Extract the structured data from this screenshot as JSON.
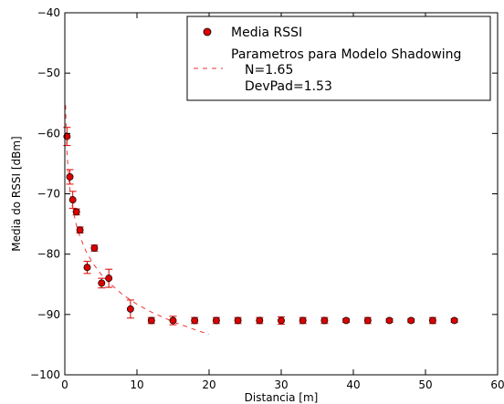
{
  "chart_data": {
    "type": "scatter",
    "xlabel": "Distancia [m]",
    "ylabel": "Media do RSSI [dBm]",
    "xlim": [
      0,
      60
    ],
    "ylim": [
      -100,
      -40
    ],
    "xticks": [
      "0",
      "10",
      "20",
      "30",
      "40",
      "50",
      "60"
    ],
    "yticks": [
      "−100",
      "−90",
      "−80",
      "−70",
      "−60",
      "−50",
      "−40"
    ],
    "grid": false,
    "legend_position": "top-right",
    "marker_color": "#dd0000",
    "model_color": "#ee3333",
    "series": [
      {
        "name": "Media RSSI",
        "kind": "points-with-errorbars",
        "points": [
          {
            "x": 0.3,
            "y": -60.5,
            "err": 1.5
          },
          {
            "x": 0.7,
            "y": -67.2,
            "err": 1.2
          },
          {
            "x": 1.1,
            "y": -71.0,
            "err": 1.4
          },
          {
            "x": 1.6,
            "y": -73.0,
            "err": 0.5
          },
          {
            "x": 2.1,
            "y": -76.0,
            "err": 0.5
          },
          {
            "x": 4.1,
            "y": -79.0,
            "err": 0.5
          },
          {
            "x": 3.1,
            "y": -82.2,
            "err": 1.0
          },
          {
            "x": 5.1,
            "y": -84.8,
            "err": 0.8
          },
          {
            "x": 6.1,
            "y": -84.0,
            "err": 1.5
          },
          {
            "x": 9.1,
            "y": -89.1,
            "err": 1.5
          },
          {
            "x": 12.0,
            "y": -91.0,
            "err": 0.5
          },
          {
            "x": 15.0,
            "y": -91.0,
            "err": 0.7
          },
          {
            "x": 18.0,
            "y": -91.0,
            "err": 0.5
          },
          {
            "x": 21.0,
            "y": -91.0,
            "err": 0.5
          },
          {
            "x": 24.0,
            "y": -91.0,
            "err": 0.5
          },
          {
            "x": 27.0,
            "y": -91.0,
            "err": 0.5
          },
          {
            "x": 30.0,
            "y": -91.0,
            "err": 0.6
          },
          {
            "x": 33.0,
            "y": -91.0,
            "err": 0.5
          },
          {
            "x": 36.0,
            "y": -91.0,
            "err": 0.5
          },
          {
            "x": 39.0,
            "y": -91.0,
            "err": 0.3
          },
          {
            "x": 42.0,
            "y": -91.0,
            "err": 0.5
          },
          {
            "x": 45.0,
            "y": -91.0,
            "err": 0.3
          },
          {
            "x": 48.0,
            "y": -91.0,
            "err": 0.3
          },
          {
            "x": 51.0,
            "y": -91.0,
            "err": 0.5
          },
          {
            "x": 54.0,
            "y": -91.0,
            "err": 0.3
          }
        ]
      },
      {
        "name": "Parametros para Modelo Shadowing",
        "kind": "dashed-line",
        "x": [
          0.1,
          0.2,
          0.3,
          0.5,
          0.7,
          1,
          1.5,
          2,
          3,
          4,
          5,
          6,
          8,
          10,
          12,
          15,
          18,
          20
        ],
        "y": [
          -55.3,
          -60.3,
          -63.2,
          -66.8,
          -69.2,
          -71.8,
          -74.7,
          -76.8,
          -79.7,
          -81.7,
          -83.3,
          -84.6,
          -86.7,
          -88.3,
          -89.6,
          -91.2,
          -92.5,
          -93.3
        ]
      }
    ],
    "legend": {
      "entries": [
        "Media RSSI",
        "Parametros para Modelo Shadowing"
      ],
      "model_params": [
        "N=1.65",
        "DevPad=1.53"
      ]
    }
  }
}
